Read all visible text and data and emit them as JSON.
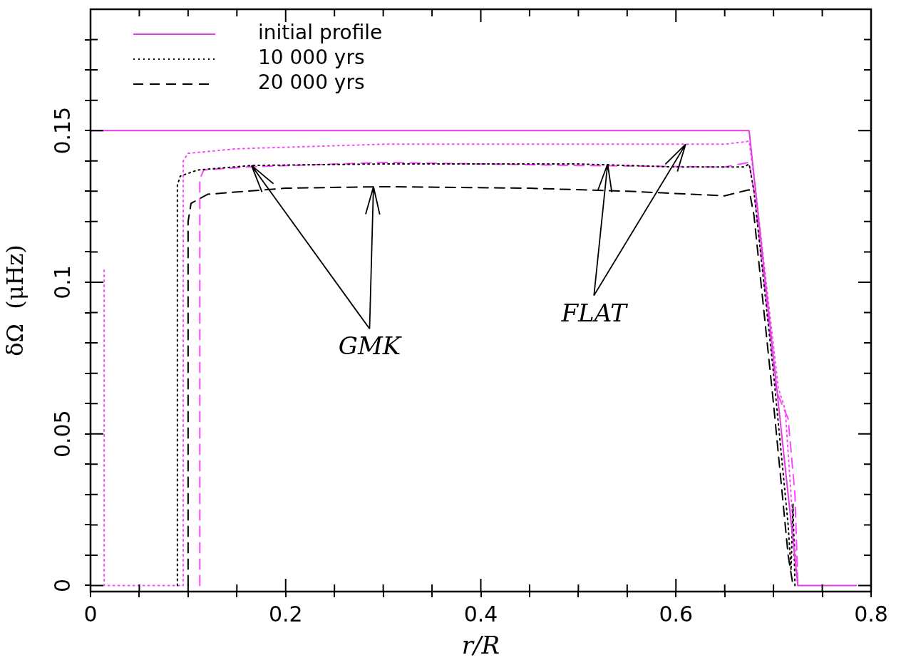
{
  "chart_data": {
    "type": "line",
    "xlabel": "r/R",
    "ylabel": "δΩ  (μHz)",
    "xlim": [
      0,
      0.8
    ],
    "ylim": [
      -0.002,
      0.19
    ],
    "xticks": [
      0,
      {
        "value": 0.05,
        "label": null
      },
      {
        "value": 0.1,
        "label": null
      },
      {
        "value": 0.15,
        "label": null
      },
      0.2,
      {
        "value": 0.25,
        "label": null
      },
      {
        "value": 0.3,
        "label": null
      },
      {
        "value": 0.35,
        "label": null
      },
      0.4,
      {
        "value": 0.45,
        "label": null
      },
      {
        "value": 0.5,
        "label": null
      },
      {
        "value": 0.55,
        "label": null
      },
      0.6,
      {
        "value": 0.65,
        "label": null
      },
      {
        "value": 0.7,
        "label": null
      },
      {
        "value": 0.75,
        "label": null
      },
      0.8
    ],
    "yticks": [
      0,
      {
        "value": 0.01,
        "label": null
      },
      {
        "value": 0.02,
        "label": null
      },
      {
        "value": 0.03,
        "label": null
      },
      {
        "value": 0.04,
        "label": null
      },
      0.05,
      {
        "value": 0.06,
        "label": null
      },
      {
        "value": 0.07,
        "label": null
      },
      {
        "value": 0.08,
        "label": null
      },
      {
        "value": 0.09,
        "label": null
      },
      0.1,
      {
        "value": 0.11,
        "label": null
      },
      {
        "value": 0.12,
        "label": null
      },
      {
        "value": 0.13,
        "label": null
      },
      {
        "value": 0.14,
        "label": null
      },
      0.15,
      {
        "value": 0.16,
        "label": null
      },
      {
        "value": 0.17,
        "label": null
      },
      {
        "value": 0.18,
        "label": null
      }
    ],
    "legend": "top left",
    "marker": "none",
    "annotations": [
      {
        "text": "GMK",
        "x": 0.165,
        "y": 0.1385
      },
      {
        "text": "FLAT",
        "x": 0.61,
        "y": 0.1455
      }
    ],
    "series": [
      {
        "name": "initial profile",
        "color": "#e03ee0",
        "line_style": "solid",
        "x": [
          0,
          0.675,
          0.725,
          0.785
        ],
        "values": [
          0.15,
          0.15,
          0,
          0
        ]
      },
      {
        "name": "10 000 yrs",
        "color": "#000000",
        "line_style": "dotted",
        "x": [
          0.089,
          0.089,
          0.092,
          0.11,
          0.165,
          0.3,
          0.5,
          0.6,
          0.67,
          0.675,
          0.68,
          0.7,
          0.715,
          0.718,
          0.72,
          0.722
        ],
        "values": [
          0,
          0.132,
          0.135,
          0.137,
          0.1385,
          0.139,
          0.139,
          0.138,
          0.138,
          0.139,
          0.13,
          0.07,
          0.02,
          0.005,
          0.027,
          0
        ]
      },
      {
        "color": "#ff44ff",
        "line_style": "dotted",
        "x": [
          0.014,
          0.014,
          0.095,
          0.095,
          0.1,
          0.15,
          0.3,
          0.5,
          0.65,
          0.675,
          0.68,
          0.705,
          0.712,
          0.72,
          0.725
        ],
        "values": [
          0.104,
          0,
          0,
          0.14,
          0.1425,
          0.144,
          0.1455,
          0.1455,
          0.1455,
          0.1465,
          0.135,
          0.065,
          0.058,
          0.02,
          0
        ]
      },
      {
        "name": "20 000 yrs",
        "color": "#000000",
        "line_style": "dashed",
        "x": [
          0.1,
          0.1,
          0.103,
          0.12,
          0.2,
          0.3,
          0.45,
          0.55,
          0.65,
          0.675,
          0.68,
          0.7,
          0.715,
          0.72
        ],
        "values": [
          0,
          0.12,
          0.126,
          0.129,
          0.131,
          0.1315,
          0.131,
          0.13,
          0.1285,
          0.1305,
          0.122,
          0.06,
          0.01,
          0
        ]
      },
      {
        "color": "#ff44ff",
        "line_style": "dashed",
        "x": [
          0.112,
          0.112,
          0.116,
          0.16,
          0.3,
          0.5,
          0.65,
          0.675,
          0.68,
          0.703,
          0.715,
          0.722,
          0.725
        ],
        "values": [
          0,
          0.134,
          0.137,
          0.138,
          0.1395,
          0.1385,
          0.138,
          0.1395,
          0.13,
          0.064,
          0.055,
          0.03,
          0
        ]
      }
    ]
  }
}
